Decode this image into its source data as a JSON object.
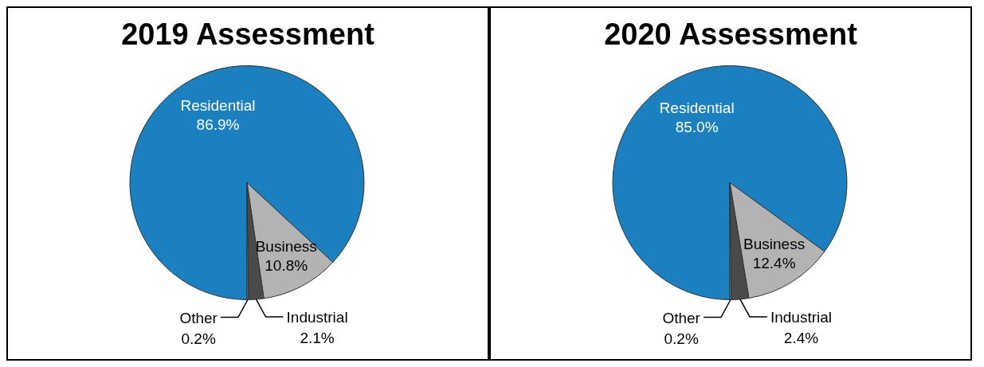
{
  "chart_data": [
    {
      "type": "pie",
      "title": "2019 Assessment",
      "categories": [
        "Residential",
        "Business",
        "Industrial",
        "Other"
      ],
      "values": [
        86.9,
        10.8,
        2.1,
        0.2
      ],
      "value_labels": [
        "86.9%",
        "10.8%",
        "2.1%",
        "0.2%"
      ],
      "colors": [
        "#1b80bf",
        "#b3b3b3",
        "#4a4a4a",
        "#8a8a8a"
      ],
      "legend": false
    },
    {
      "type": "pie",
      "title": "2020 Assessment",
      "categories": [
        "Residential",
        "Business",
        "Industrial",
        "Other"
      ],
      "values": [
        85.0,
        12.4,
        2.4,
        0.2
      ],
      "value_labels": [
        "85.0%",
        "12.4%",
        "2.4%",
        "0.2%"
      ],
      "colors": [
        "#1b80bf",
        "#b3b3b3",
        "#4a4a4a",
        "#8a8a8a"
      ],
      "legend": false
    }
  ]
}
